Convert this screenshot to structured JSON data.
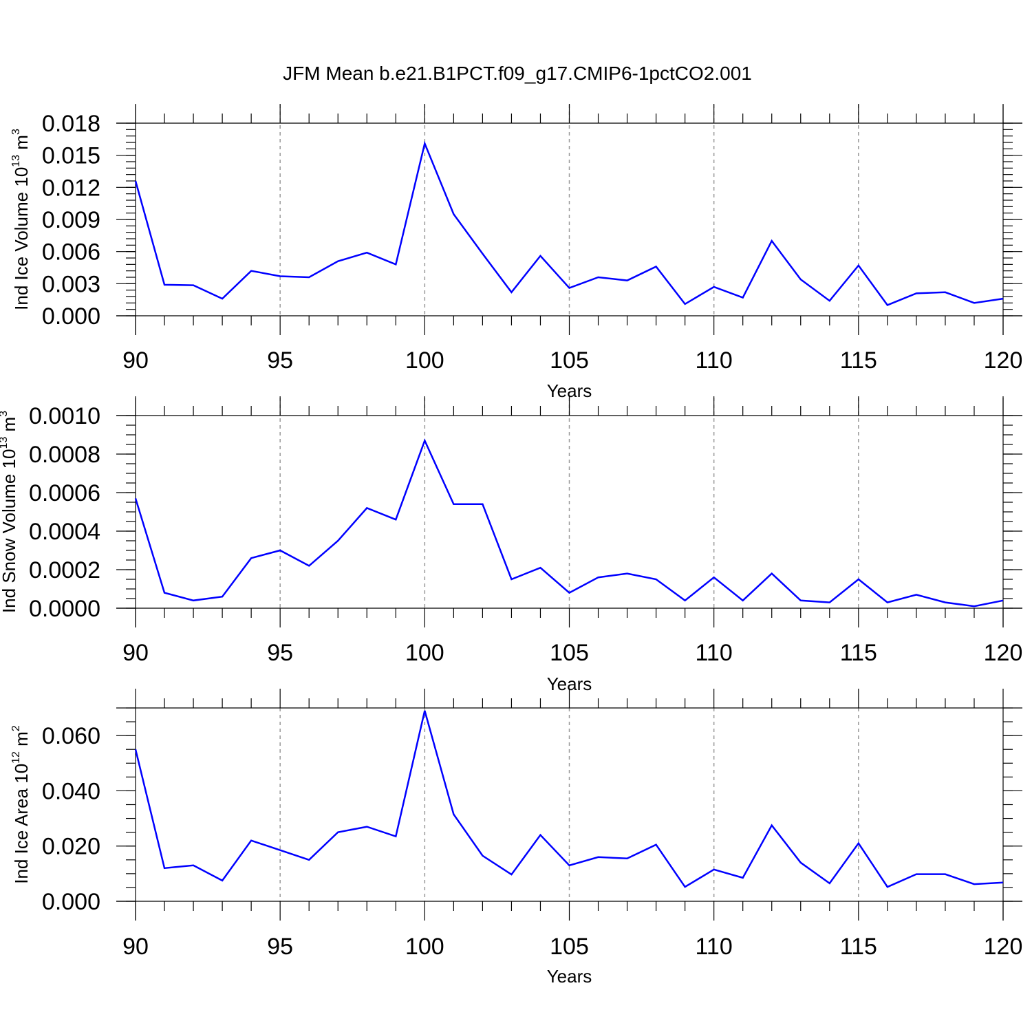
{
  "figure": {
    "title": "JFM Mean b.e21.B1PCT.f09_g17.CMIP6-1pctCO2.001"
  },
  "chart_data": [
    {
      "type": "line",
      "xlabel": "Years",
      "ylabel": {
        "base": "Ind Ice Volume 10",
        "exp": "13",
        "unit": " m",
        "unit_exp": "3"
      },
      "xlim": [
        90,
        120
      ],
      "ylim": [
        0,
        0.018
      ],
      "x_ticks": [
        90,
        95,
        100,
        105,
        110,
        115,
        120
      ],
      "x_tick_labels": [
        "90",
        "95",
        "100",
        "105",
        "110",
        "115",
        "120"
      ],
      "y_ticks": [
        0,
        0.003,
        0.006,
        0.009,
        0.012,
        0.015,
        0.018
      ],
      "y_tick_labels": [
        "0.000",
        "0.003",
        "0.006",
        "0.009",
        "0.012",
        "0.015",
        "0.018"
      ],
      "y_minor_step": 0.0006,
      "grid": "vertical dashed at major x ticks",
      "series": [
        {
          "color": "#0000ff",
          "x": [
            90,
            91,
            92,
            93,
            94,
            95,
            96,
            97,
            98,
            99,
            100,
            101,
            102,
            103,
            104,
            105,
            106,
            107,
            108,
            109,
            110,
            111,
            112,
            113,
            114,
            115,
            116,
            117,
            118,
            119,
            120
          ],
          "values": [
            0.0126,
            0.0029,
            0.00285,
            0.0016,
            0.0042,
            0.0037,
            0.0036,
            0.0051,
            0.0059,
            0.0048,
            0.0161,
            0.0095,
            0.0058,
            0.0022,
            0.0056,
            0.0026,
            0.0036,
            0.0033,
            0.0046,
            0.0011,
            0.0027,
            0.0017,
            0.007,
            0.0034,
            0.0014,
            0.0047,
            0.001,
            0.0021,
            0.0022,
            0.0012,
            0.0016
          ]
        }
      ]
    },
    {
      "type": "line",
      "xlabel": "Years",
      "ylabel": {
        "base": "Ind Snow Volume 10",
        "exp": "13",
        "unit": " m",
        "unit_exp": "3"
      },
      "xlim": [
        90,
        120
      ],
      "ylim": [
        0,
        0.001
      ],
      "x_ticks": [
        90,
        95,
        100,
        105,
        110,
        115,
        120
      ],
      "x_tick_labels": [
        "90",
        "95",
        "100",
        "105",
        "110",
        "115",
        "120"
      ],
      "y_ticks": [
        0,
        0.0002,
        0.0004,
        0.0006,
        0.0008,
        0.001
      ],
      "y_tick_labels": [
        "0.0000",
        "0.0002",
        "0.0004",
        "0.0006",
        "0.0008",
        "0.0010"
      ],
      "y_minor_step": 5e-05,
      "grid": "vertical dashed at major x ticks",
      "series": [
        {
          "color": "#0000ff",
          "x": [
            90,
            91,
            92,
            93,
            94,
            95,
            96,
            97,
            98,
            99,
            100,
            101,
            102,
            103,
            104,
            105,
            106,
            107,
            108,
            109,
            110,
            111,
            112,
            113,
            114,
            115,
            116,
            117,
            118,
            119,
            120
          ],
          "values": [
            0.00057,
            8e-05,
            4e-05,
            6e-05,
            0.00026,
            0.0003,
            0.00022,
            0.00035,
            0.00052,
            0.00046,
            0.00087,
            0.00054,
            0.00054,
            0.00015,
            0.00021,
            8e-05,
            0.00016,
            0.00018,
            0.00015,
            4e-05,
            0.00016,
            4e-05,
            0.00018,
            4e-05,
            3e-05,
            0.00015,
            3e-05,
            7e-05,
            3e-05,
            1e-05,
            4e-05
          ]
        }
      ]
    },
    {
      "type": "line",
      "xlabel": "Years",
      "ylabel": {
        "base": "Ind Ice Area 10",
        "exp": "12",
        "unit": " m",
        "unit_exp": "2"
      },
      "xlim": [
        90,
        120
      ],
      "ylim": [
        0,
        0.07
      ],
      "x_ticks": [
        90,
        95,
        100,
        105,
        110,
        115,
        120
      ],
      "x_tick_labels": [
        "90",
        "95",
        "100",
        "105",
        "110",
        "115",
        "120"
      ],
      "y_ticks": [
        0,
        0.02,
        0.04,
        0.06
      ],
      "y_tick_labels": [
        "0.000",
        "0.020",
        "0.040",
        "0.060"
      ],
      "y_minor_step": 0.005,
      "grid": "vertical dashed at major x ticks",
      "series": [
        {
          "color": "#0000ff",
          "x": [
            90,
            91,
            92,
            93,
            94,
            95,
            96,
            97,
            98,
            99,
            100,
            101,
            102,
            103,
            104,
            105,
            106,
            107,
            108,
            109,
            110,
            111,
            112,
            113,
            114,
            115,
            116,
            117,
            118,
            119,
            120
          ],
          "values": [
            0.055,
            0.012,
            0.013,
            0.0075,
            0.022,
            0.0185,
            0.015,
            0.025,
            0.027,
            0.0235,
            0.069,
            0.0315,
            0.0165,
            0.0097,
            0.024,
            0.013,
            0.016,
            0.0155,
            0.0205,
            0.0052,
            0.0115,
            0.0085,
            0.0275,
            0.014,
            0.0065,
            0.021,
            0.0052,
            0.0098,
            0.0098,
            0.0062,
            0.0068
          ]
        }
      ]
    }
  ]
}
